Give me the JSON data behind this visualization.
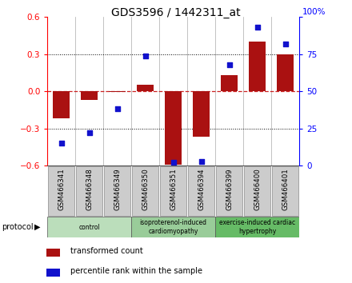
{
  "title": "GDS3596 / 1442311_at",
  "samples": [
    "GSM466341",
    "GSM466348",
    "GSM466349",
    "GSM466350",
    "GSM466351",
    "GSM466394",
    "GSM466399",
    "GSM466400",
    "GSM466401"
  ],
  "transformed_count": [
    -0.22,
    -0.07,
    -0.005,
    0.055,
    -0.595,
    -0.37,
    0.13,
    0.4,
    0.3
  ],
  "percentile_rank": [
    15,
    22,
    38,
    74,
    2,
    3,
    68,
    93,
    82
  ],
  "group_info": [
    {
      "start": 0,
      "end": 3,
      "color": "#bbdebb",
      "label": "control"
    },
    {
      "start": 3,
      "end": 6,
      "color": "#99cc99",
      "label": "isoproterenol-induced\ncardiomyopathy"
    },
    {
      "start": 6,
      "end": 9,
      "color": "#66bb66",
      "label": "exercise-induced cardiac\nhypertrophy"
    }
  ],
  "ylim_left": [
    -0.6,
    0.6
  ],
  "ylim_right": [
    0,
    100
  ],
  "yticks_left": [
    -0.6,
    -0.3,
    0.0,
    0.3,
    0.6
  ],
  "yticks_right": [
    0,
    25,
    50,
    75,
    100
  ],
  "bar_color": "#aa1111",
  "dot_color": "#1111cc",
  "zero_line_color": "#cc2222",
  "title_fontsize": 10,
  "bg_color": "#ffffff",
  "sample_box_color": "#cccccc",
  "sample_box_edge": "#888888"
}
